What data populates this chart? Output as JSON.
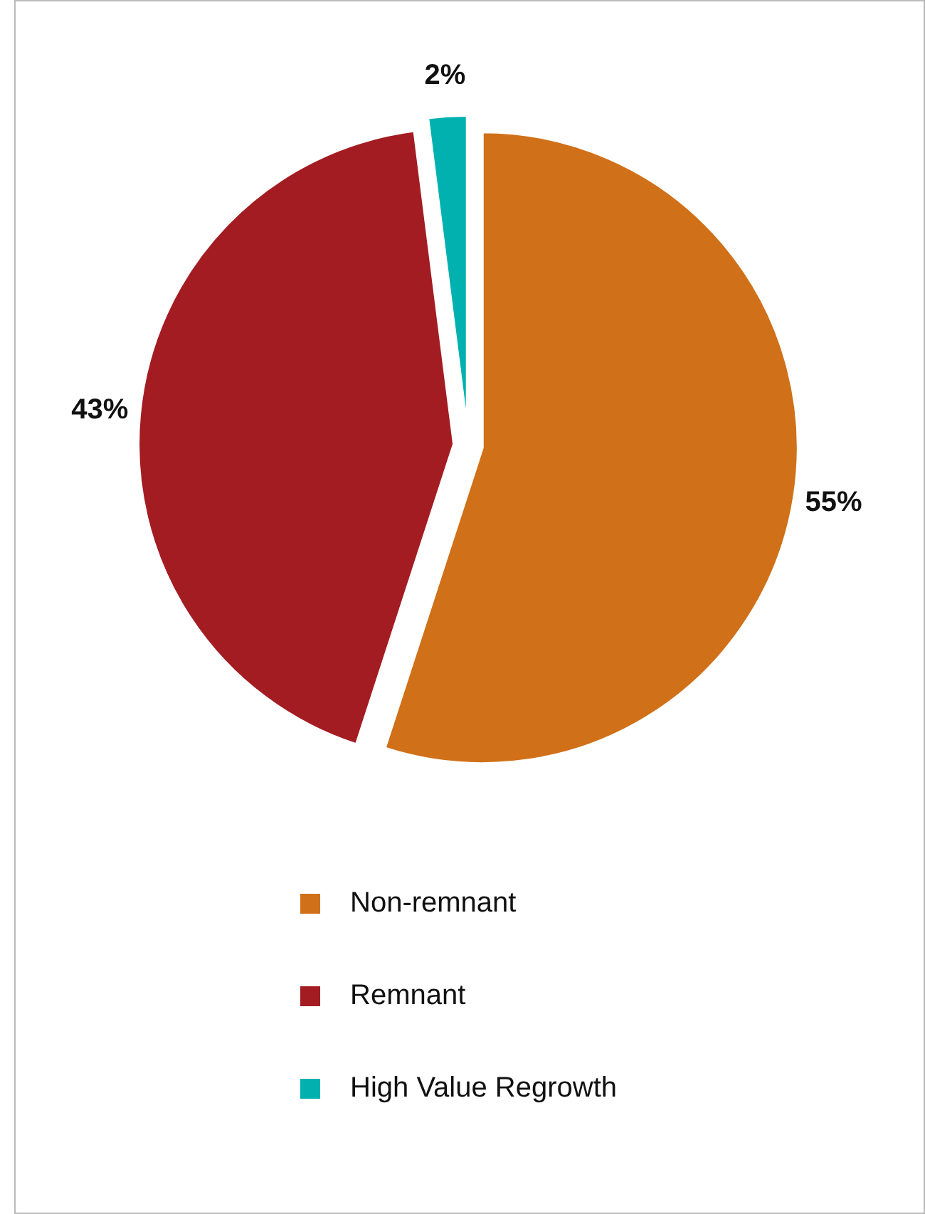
{
  "chart_data": {
    "type": "pie",
    "categories": [
      "Non-remnant",
      "Remnant",
      "High Value Regrowth"
    ],
    "values": [
      55,
      43,
      2
    ],
    "colors": [
      "#d07018",
      "#a31c22",
      "#00b1b0"
    ],
    "value_labels": [
      "55%",
      "43%",
      "2%"
    ],
    "legend": "bottom"
  }
}
